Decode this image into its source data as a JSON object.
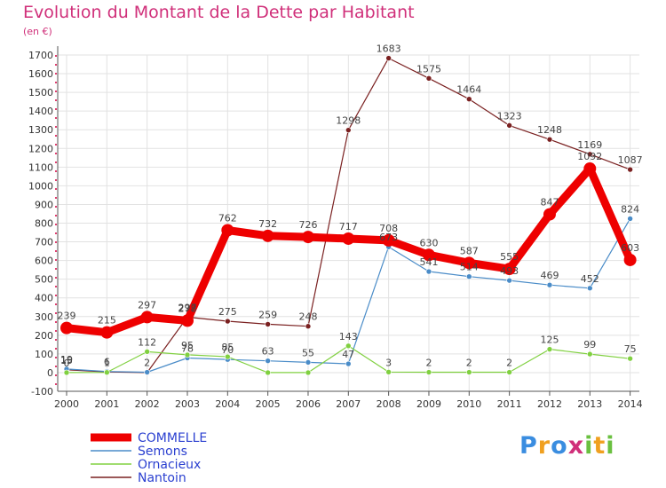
{
  "title": "Evolution du Montant de la Dette par Habitant",
  "subtitle": "(en €)",
  "brand": {
    "letters": [
      "P",
      "r",
      "o",
      "x",
      "i",
      "t",
      "i"
    ]
  },
  "chart_data": {
    "type": "line",
    "title": "Evolution du Montant de la Dette par Habitant",
    "ylabel": "(en €)",
    "x": [
      "2000",
      "2001",
      "2002",
      "2003",
      "2004",
      "2005",
      "2006",
      "2007",
      "2008",
      "2009",
      "2010",
      "2011",
      "2012",
      "2013",
      "2014"
    ],
    "ylim": [
      -100,
      1700
    ],
    "yticks": [
      -100,
      0,
      100,
      200,
      300,
      400,
      500,
      600,
      700,
      800,
      900,
      1000,
      1100,
      1200,
      1300,
      1400,
      1500,
      1600,
      1700
    ],
    "grid": true,
    "legend_position": "bottom-left",
    "series": [
      {
        "name": "COMMELLE",
        "color": "#ee0000",
        "width": 9,
        "values": [
          239,
          215,
          297,
          278,
          762,
          732,
          726,
          717,
          708,
          630,
          587,
          555,
          847,
          1092,
          603
        ],
        "labels": [
          "239",
          "215",
          "297",
          "278",
          "762",
          "732",
          "726",
          "717",
          "708",
          "630",
          "587",
          "555",
          "847",
          "1092",
          "603"
        ]
      },
      {
        "name": "Semons",
        "color": "#4a8cc8",
        "width": 1.2,
        "values": [
          19,
          6,
          2,
          78,
          70,
          63,
          55,
          47,
          673,
          541,
          514,
          493,
          469,
          452,
          824
        ],
        "labels": [
          "19",
          "6",
          "2",
          "78",
          "70",
          "63",
          "55",
          "47",
          "673",
          "541",
          "514",
          "493",
          "469",
          "452",
          "824"
        ]
      },
      {
        "name": "Ornacieux",
        "color": "#80d040",
        "width": 1.2,
        "values": [
          0,
          1,
          112,
          95,
          85,
          0,
          0,
          143,
          3,
          2,
          2,
          2,
          125,
          99,
          75
        ],
        "labels": [
          "0",
          "1",
          "112",
          "95",
          "85",
          "",
          "",
          "143",
          "3",
          "2",
          "2",
          "2",
          "125",
          "99",
          "75"
        ]
      },
      {
        "name": "Nantoin",
        "color": "#7a2020",
        "width": 1.2,
        "values": [
          15,
          4,
          0,
          297,
          275,
          259,
          248,
          1298,
          1683,
          1575,
          1464,
          1323,
          1248,
          1169,
          1087
        ],
        "labels": [
          "15",
          "",
          "",
          "297",
          "275",
          "259",
          "248",
          "1298",
          "1683",
          "1575",
          "1464",
          "1323",
          "1248",
          "1169",
          "1087"
        ]
      }
    ]
  }
}
